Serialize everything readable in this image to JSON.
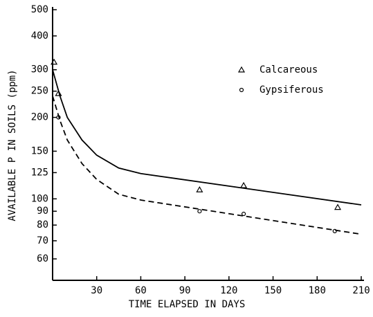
{
  "chart_data": {
    "type": "scatter",
    "xlabel": "TIME ELAPSED IN DAYS",
    "ylabel": "AVAILABLE P IN SOILS (ppm)",
    "xlim": [
      0,
      210
    ],
    "xticks": [
      30,
      60,
      90,
      120,
      150,
      180,
      210
    ],
    "ylim": [
      50,
      500
    ],
    "yticks": [
      60,
      70,
      80,
      90,
      100,
      125,
      150,
      200,
      250,
      300,
      400,
      500
    ],
    "log_y": true,
    "series": [
      {
        "name": "Calcareous",
        "marker": "triangle",
        "color": "#000000",
        "x": [
          1,
          4,
          100,
          130,
          194
        ],
        "values": [
          320,
          245,
          108,
          112,
          93
        ]
      },
      {
        "name": "Gypsiferous",
        "marker": "circle",
        "color": "#000000",
        "x": [
          4,
          100,
          130,
          192
        ],
        "values": [
          200,
          90,
          88,
          76
        ]
      }
    ],
    "curves": [
      {
        "style": "solid",
        "x": [
          0,
          5,
          10,
          20,
          30,
          45,
          60,
          210
        ],
        "values": [
          300,
          240,
          200,
          165,
          145,
          130,
          124,
          95
        ]
      },
      {
        "style": "dashed",
        "x": [
          0,
          5,
          10,
          20,
          30,
          45,
          60,
          210
        ],
        "values": [
          240,
          195,
          165,
          135,
          118,
          104,
          99,
          74
        ]
      }
    ]
  }
}
